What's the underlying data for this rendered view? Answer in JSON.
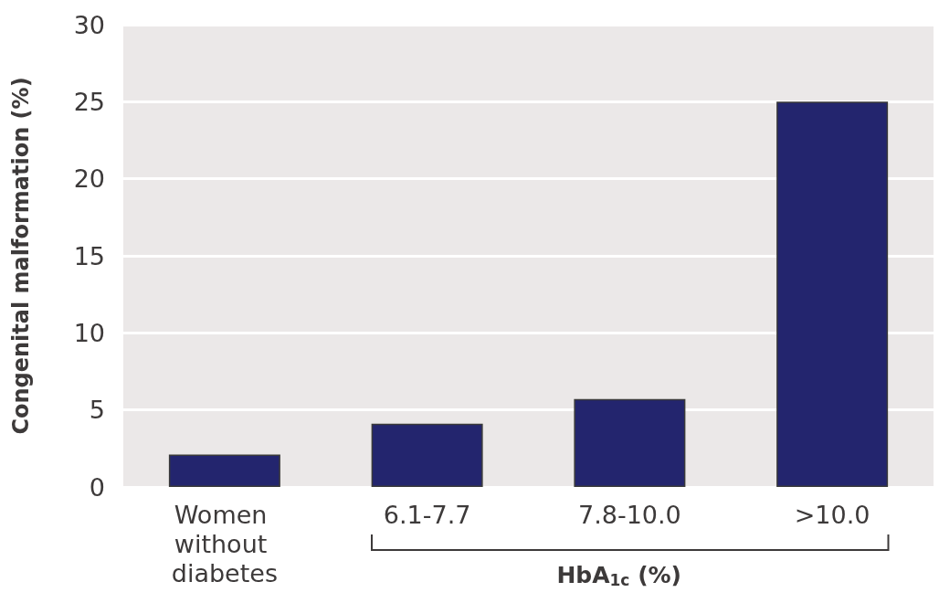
{
  "chart_data": {
    "type": "bar",
    "xlabel": "HbA$_{1c}$ (%)",
    "ylabel": "Congenital malformation (%)",
    "categories": [
      "Women without diabetes",
      "6.1-7.7",
      "7.8-10.0",
      ">10.0"
    ],
    "values": [
      2.1,
      4.1,
      5.7,
      25.0
    ],
    "color": "#23256e",
    "ylim": [
      0,
      30
    ],
    "yticks": [
      0,
      5,
      10,
      15,
      20,
      25,
      30
    ],
    "grid": "y"
  }
}
